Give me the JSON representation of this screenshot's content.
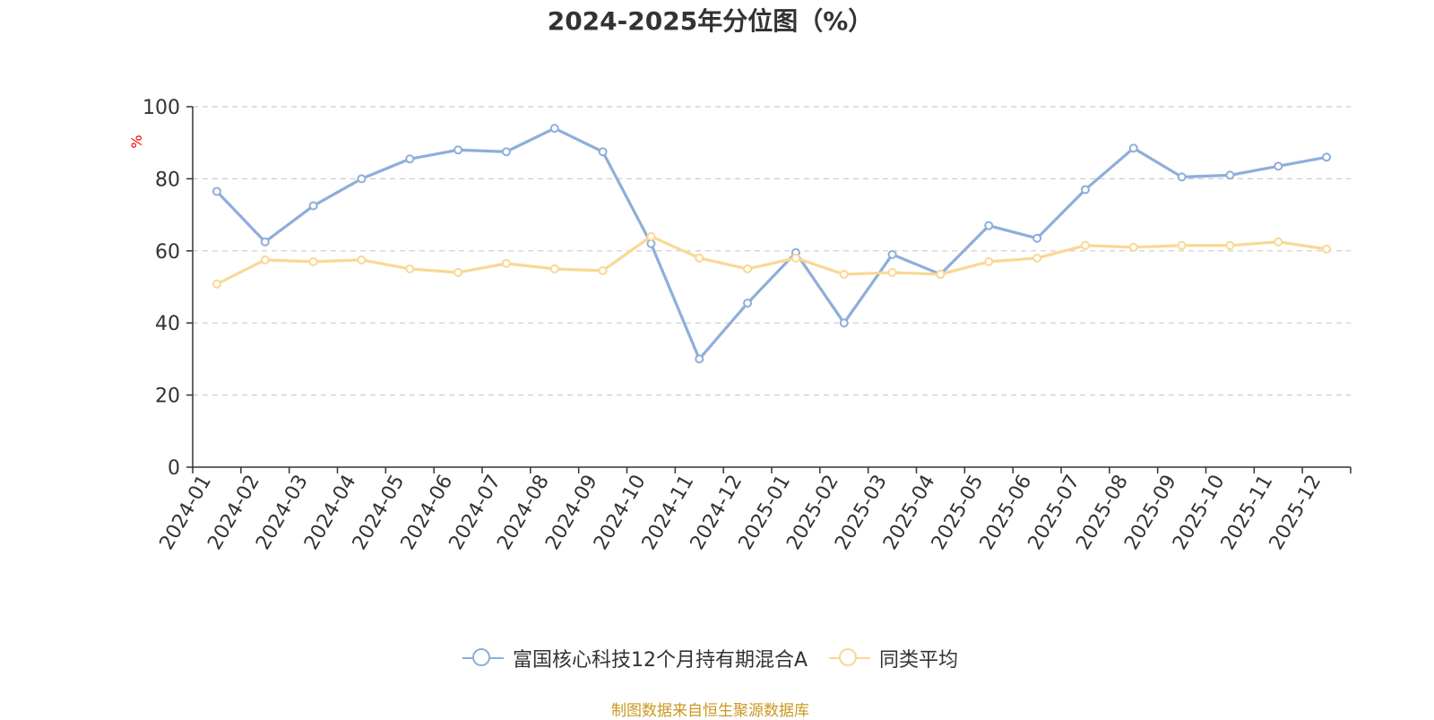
{
  "chart_data": {
    "type": "line",
    "title": "2024-2025年分位图（%）",
    "ylabel": "%",
    "xlabel": "",
    "ylim": [
      0,
      100
    ],
    "yticks": [
      0,
      20,
      40,
      60,
      80,
      100
    ],
    "grid": true,
    "legend_position": "bottom-center",
    "categories": [
      "2024-01",
      "2024-02",
      "2024-03",
      "2024-04",
      "2024-05",
      "2024-06",
      "2024-07",
      "2024-08",
      "2024-09",
      "2024-10",
      "2024-11",
      "2024-12",
      "2025-01",
      "2025-02",
      "2025-03",
      "2025-04",
      "2025-05",
      "2025-06",
      "2025-07",
      "2025-08",
      "2025-09",
      "2025-10",
      "2025-11",
      "2025-12"
    ],
    "series": [
      {
        "name": "富国核心科技12个月持有期混合A",
        "color": "#8eaedb",
        "values": [
          76.5,
          62.5,
          72.5,
          80,
          85.5,
          88,
          87.5,
          94,
          87.5,
          62,
          30,
          45.5,
          59.5,
          40,
          59,
          53.5,
          67,
          63.5,
          77,
          88.5,
          80.5,
          81,
          83.5,
          86
        ]
      },
      {
        "name": "同类平均",
        "color": "#f9d895",
        "values": [
          50.8,
          57.5,
          57,
          57.5,
          55,
          54,
          56.5,
          55,
          54.5,
          64,
          58,
          55,
          58,
          53.5,
          54,
          53.5,
          57,
          58,
          61.5,
          61,
          61.5,
          61.5,
          62.5,
          60.5
        ]
      }
    ]
  },
  "source_note": "制图数据来自恒生聚源数据库"
}
